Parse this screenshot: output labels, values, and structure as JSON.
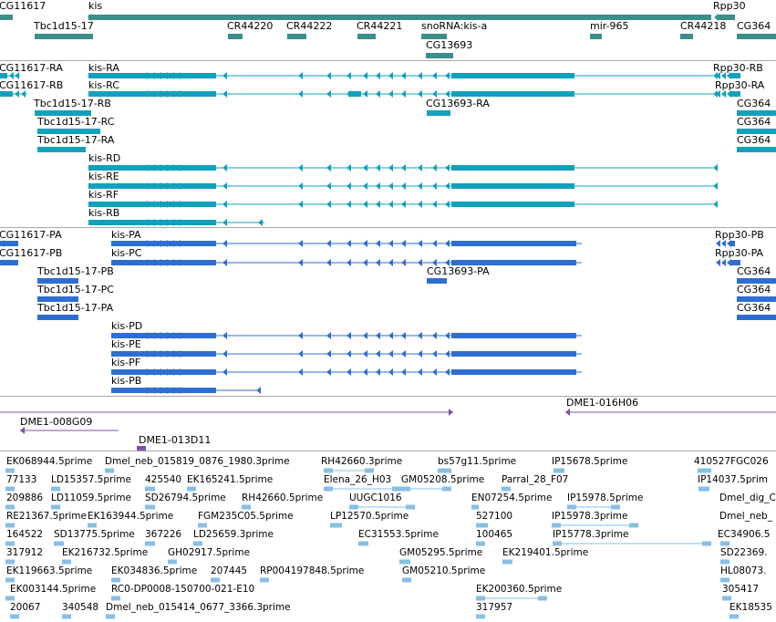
{
  "colors": {
    "gene": "#3a8f8b",
    "rna": "#12a1bc",
    "protein": "#2f6ed1",
    "clone": "#7a55a8",
    "est": "#86bfe4",
    "separator": "#a8a8a8"
  },
  "icons": [
    "intron-arrow-icon",
    "strand-arrow-icon"
  ],
  "tracks": {
    "genes": {
      "labels": [
        "CG11617",
        "kis",
        "Rpp30",
        "Tbc1d15-17",
        "CR44220",
        "CR44222",
        "CR44221",
        "snoRNA:kis-a",
        "mir-965",
        "CR44218",
        "CG364",
        "CG13693"
      ]
    },
    "transcripts": {
      "labels": [
        "CG11617-RA",
        "kis-RA",
        "Rpp30-RB",
        "CG11617-RB",
        "kis-RC",
        "Rpp30-RA",
        "Tbc1d15-17-RB",
        "CG13693-RA",
        "CG364",
        "Tbc1d15-17-RC",
        "CG364",
        "Tbc1d15-17-RA",
        "CG364",
        "kis-RD",
        "kis-RE",
        "kis-RF",
        "kis-RB"
      ]
    },
    "proteins": {
      "labels": [
        "CG11617-PA",
        "kis-PA",
        "Rpp30-PB",
        "CG11617-PB",
        "kis-PC",
        "Rpp30-PA",
        "Tbc1d15-17-PB",
        "CG13693-PA",
        "CG364",
        "Tbc1d15-17-PC",
        "CG364",
        "Tbc1d15-17-PA",
        "CG364",
        "kis-PD",
        "kis-PE",
        "kis-PF",
        "kis-PB"
      ]
    },
    "clones": {
      "labels": [
        "DME1-016H06",
        "DME1-008G09",
        "DME1-013D11"
      ]
    },
    "ests": {
      "labels": [
        "EK068944.5prime",
        "Dmel_neb_015819_0876_1980.3prime",
        "RH42660.3prime",
        "bs57g11.5prime",
        "IP15678.5prime",
        "410527FGC026",
        "77133",
        "LD15357.5prime",
        "425540",
        "EK165241.5prime",
        "Elena_26_H03",
        "GM05208.5prime",
        "Parral_28_F07",
        "IP14037.5prim",
        "209886",
        "LD11059.5prime",
        "SD26794.5prime",
        "RH42660.5prime",
        "UUGC1016",
        "EN07254.5prime",
        "IP15978.5prime",
        "Dmel_dig_C",
        "RE21367.5prime",
        "EK163944.5prime",
        "FGM235C05.5prime",
        "LP12570.5prime",
        "527100",
        "IP15978.3prime",
        "Dmel_neb_",
        "164522",
        "SD13775.5prime",
        "367226",
        "LD25659.3prime",
        "EC31553.5prime",
        "100465",
        "IP15778.3prime",
        "EC34906.5",
        "317912",
        "EK216732.5prime",
        "GH02917.5prime",
        "GM05295.5prime",
        "EK219401.5prime",
        "SD22369.",
        "EK119663.5prime",
        "EK034836.5prime",
        "207445",
        "RP004197848.5prime",
        "GM05210.5prime",
        "HL08073.",
        "EK003144.5prime",
        "RC0-DP0008-150700-021-E10",
        "EK200360.5prime",
        "305417",
        "20067",
        "340548",
        "Dmel_neb_015414_0677_3366.3prime",
        "317957",
        "EK18535"
      ]
    }
  }
}
